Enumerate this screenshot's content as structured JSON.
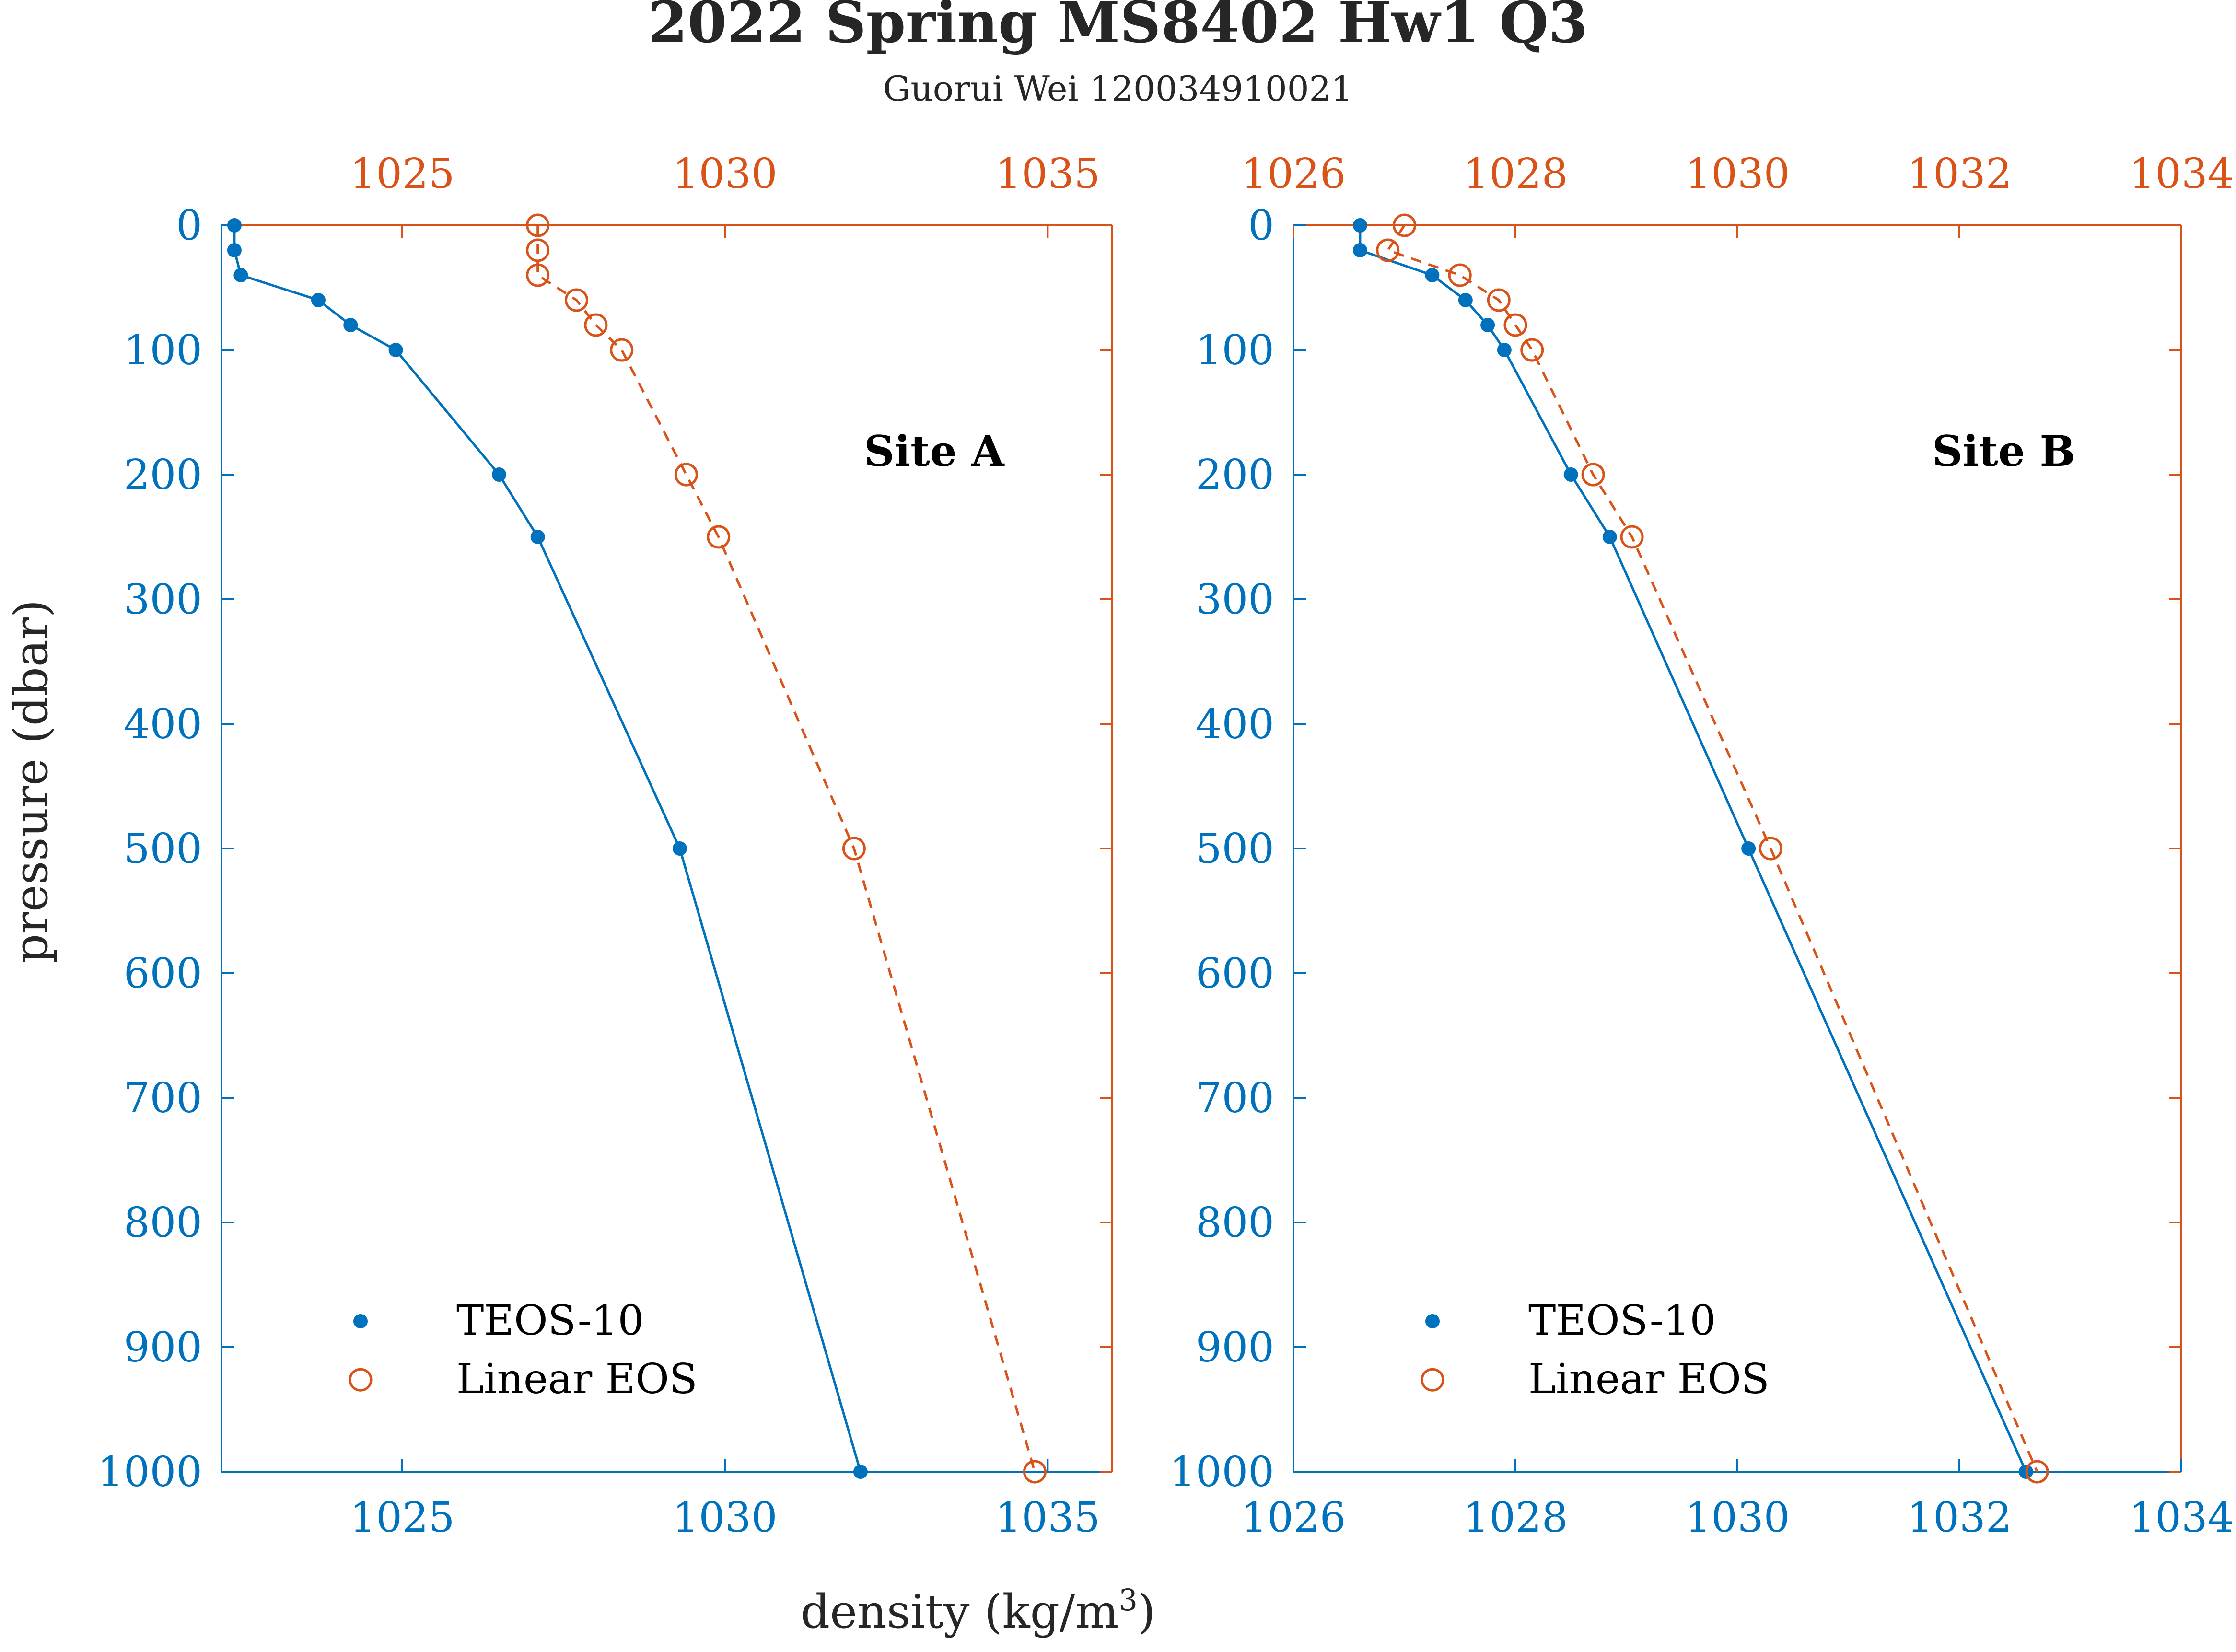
{
  "title": "2022 Spring MS8402 Hw1 Q3",
  "subtitle": "Guorui Wei 120034910021",
  "xlabel": "density (kg/m",
  "xlabel_sup": "3",
  "xlabel_close": ")",
  "ylabel": "pressure (dbar)",
  "colors": {
    "teos": "#0072BD",
    "linear": "#D95319",
    "text": "#262626"
  },
  "chart_data": [
    {
      "type": "line",
      "site_label": "Site A",
      "ylabel": "pressure (dbar)",
      "ylim": [
        0,
        1000
      ],
      "yticks": [
        "0",
        "100",
        "200",
        "300",
        "400",
        "500",
        "600",
        "700",
        "800",
        "900",
        "1000"
      ],
      "y_reversed": true,
      "bottom_axis": {
        "xlim": [
          1022.2,
          1036.0
        ],
        "ticks": [
          "1025",
          "1030",
          "1035"
        ],
        "color": "#0072BD"
      },
      "top_axis": {
        "xlim": [
          1022.2,
          1036.0
        ],
        "ticks": [
          "1025",
          "1030",
          "1035"
        ],
        "color": "#D95319"
      },
      "legend": {
        "location": "bottom-left",
        "entries": [
          "TEOS-10",
          "Linear EOS"
        ]
      },
      "series": [
        {
          "name": "TEOS-10",
          "marker": "filled-dot",
          "line": "solid",
          "color": "#0072BD",
          "x": [
            1022.4,
            1022.4,
            1022.5,
            1023.7,
            1024.2,
            1024.9,
            1026.5,
            1027.1,
            1029.3,
            1032.1
          ],
          "y": [
            0,
            20,
            40,
            60,
            80,
            100,
            200,
            250,
            500,
            1000
          ]
        },
        {
          "name": "Linear EOS",
          "marker": "open-circle",
          "line": "dashed",
          "color": "#D95319",
          "x": [
            1027.1,
            1027.1,
            1027.1,
            1027.7,
            1028.0,
            1028.4,
            1029.4,
            1029.9,
            1032.0,
            1034.8
          ],
          "y": [
            0,
            20,
            40,
            60,
            80,
            100,
            200,
            250,
            500,
            1000
          ]
        }
      ]
    },
    {
      "type": "line",
      "site_label": "Site B",
      "ylim": [
        0,
        1000
      ],
      "yticks": [
        "0",
        "100",
        "200",
        "300",
        "400",
        "500",
        "600",
        "700",
        "800",
        "900",
        "1000"
      ],
      "y_reversed": true,
      "bottom_axis": {
        "xlim": [
          1026,
          1034
        ],
        "ticks": [
          "1026",
          "1028",
          "1030",
          "1032",
          "1034"
        ],
        "color": "#0072BD"
      },
      "top_axis": {
        "xlim": [
          1026,
          1034
        ],
        "ticks": [
          "1026",
          "1028",
          "1030",
          "1032",
          "1034"
        ],
        "color": "#D95319"
      },
      "legend": {
        "location": "bottom-left",
        "entries": [
          "TEOS-10",
          "Linear EOS"
        ]
      },
      "series": [
        {
          "name": "TEOS-10",
          "marker": "filled-dot",
          "line": "solid",
          "color": "#0072BD",
          "x": [
            1026.6,
            1026.6,
            1027.25,
            1027.55,
            1027.75,
            1027.9,
            1028.5,
            1028.85,
            1030.1,
            1032.6
          ],
          "y": [
            0,
            20,
            40,
            60,
            80,
            100,
            200,
            250,
            500,
            1000
          ]
        },
        {
          "name": "Linear EOS",
          "marker": "open-circle",
          "line": "dashed",
          "color": "#D95319",
          "x": [
            1027.0,
            1026.85,
            1027.5,
            1027.85,
            1028.0,
            1028.15,
            1028.7,
            1029.05,
            1030.3,
            1032.7
          ],
          "y": [
            0,
            20,
            40,
            60,
            80,
            100,
            200,
            250,
            500,
            1000
          ]
        }
      ]
    }
  ]
}
